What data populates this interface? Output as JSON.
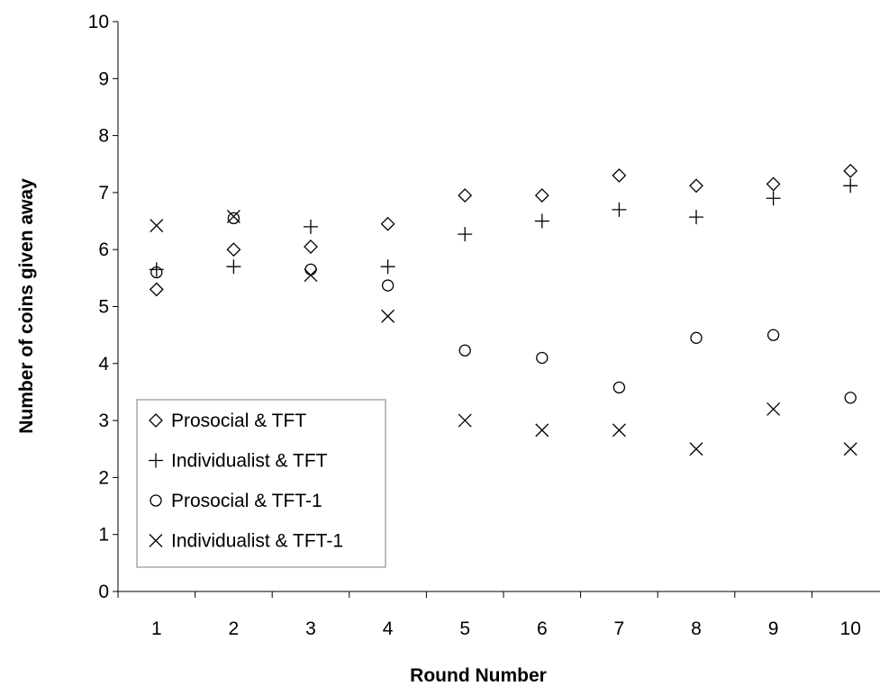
{
  "chart_data": {
    "type": "scatter",
    "title": "",
    "xlabel": "Round Number",
    "ylabel": "Number of coins given away",
    "categories": [
      "1",
      "2",
      "3",
      "4",
      "5",
      "6",
      "7",
      "8",
      "9",
      "10"
    ],
    "ylim": [
      0,
      10
    ],
    "yticks": [
      "0",
      "1",
      "2",
      "3",
      "4",
      "5",
      "6",
      "7",
      "8",
      "9",
      "10"
    ],
    "grid": false,
    "legend_position": "bottom-left",
    "series": [
      {
        "name": "Prosocial & TFT",
        "marker": "diamond",
        "values": [
          5.3,
          6.0,
          6.05,
          6.45,
          6.95,
          6.95,
          7.3,
          7.12,
          7.15,
          7.38
        ]
      },
      {
        "name": "Individualist & TFT",
        "marker": "plus",
        "values": [
          5.65,
          5.7,
          6.4,
          5.7,
          6.27,
          6.5,
          6.7,
          6.57,
          6.9,
          7.12
        ]
      },
      {
        "name": "Prosocial & TFT-1",
        "marker": "circle",
        "values": [
          5.6,
          6.55,
          5.65,
          5.37,
          4.23,
          4.1,
          3.58,
          4.45,
          4.5,
          3.4
        ]
      },
      {
        "name": "Individualist & TFT-1",
        "marker": "cross",
        "values": [
          6.42,
          6.58,
          5.55,
          4.83,
          3.0,
          2.83,
          2.83,
          2.5,
          3.2,
          2.5
        ]
      }
    ]
  }
}
